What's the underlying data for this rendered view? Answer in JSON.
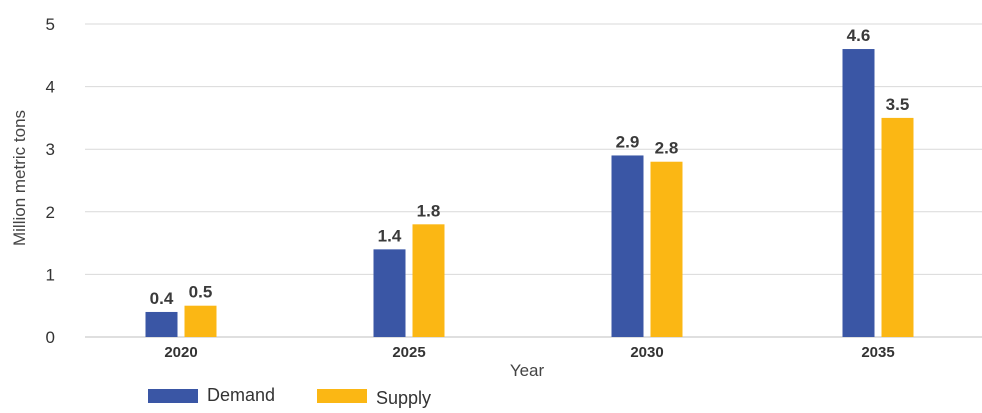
{
  "chart_data": {
    "type": "bar",
    "title": "",
    "xlabel": "Year",
    "ylabel": "Million metric tons",
    "categories": [
      "2020",
      "2025",
      "2030",
      "2035"
    ],
    "series": [
      {
        "name": "Demand",
        "values": [
          0.4,
          1.4,
          2.9,
          4.6
        ],
        "color": "#3a56a5"
      },
      {
        "name": "Supply",
        "values": [
          0.5,
          1.8,
          2.8,
          3.5
        ],
        "color": "#fbb714"
      }
    ],
    "ylim": [
      0,
      5
    ],
    "yticks": [
      0,
      1,
      2,
      3,
      4,
      5
    ],
    "grid": true,
    "legend_position": "bottom-left"
  }
}
